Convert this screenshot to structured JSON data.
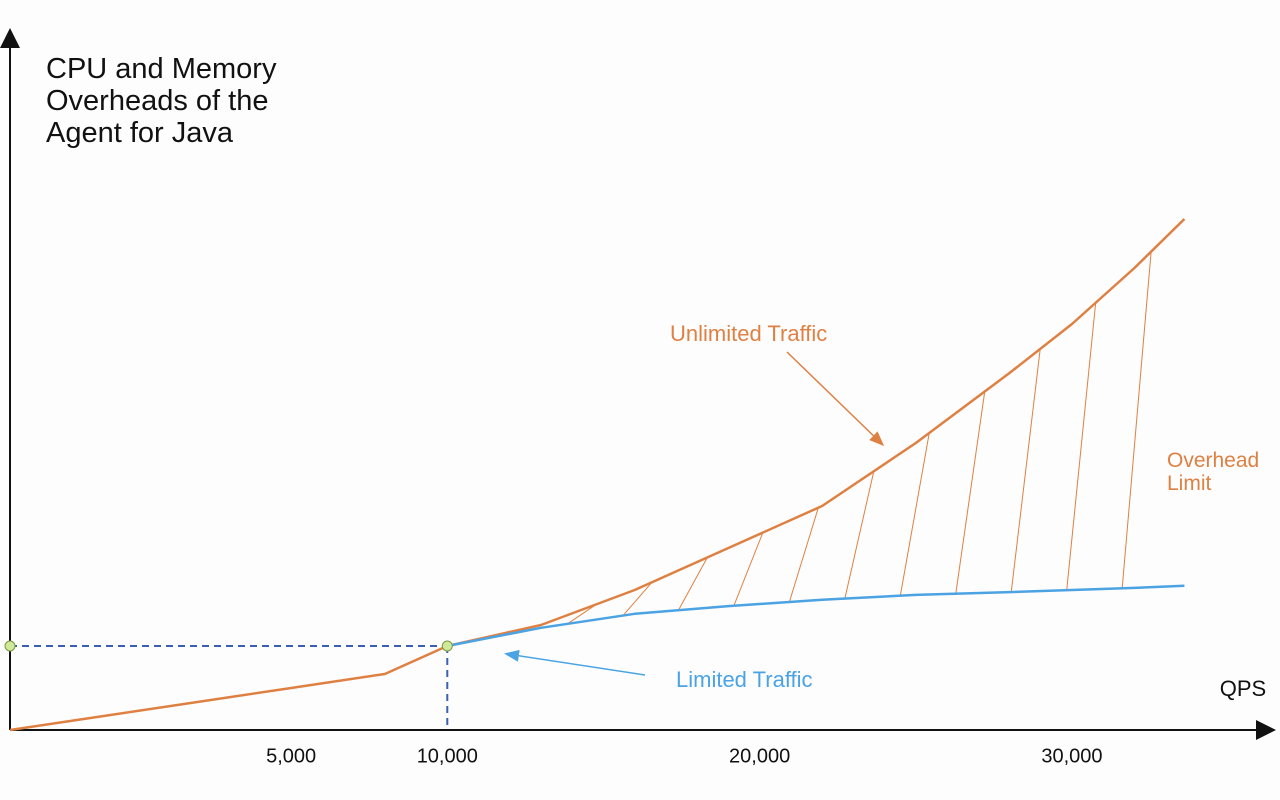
{
  "chart_data": {
    "type": "line",
    "title": "CPU and Memory Overheads of the Agent for Java",
    "x_label": "QPS",
    "x": [
      -4000,
      -1000,
      2000,
      5000,
      8000,
      10000,
      13000,
      16000,
      19000,
      22000,
      25000,
      28000,
      30000,
      32000,
      33600
    ],
    "series": [
      {
        "name": "Unlimited Traffic",
        "color": "#df8043",
        "values": [
          0,
          2,
          4,
          6,
          8,
          12,
          15,
          20,
          26,
          32,
          41,
          51,
          58,
          66,
          73
        ]
      },
      {
        "name": "Limited Traffic",
        "color": "#4ba3e3",
        "values": [
          null,
          null,
          null,
          null,
          null,
          12,
          14.6,
          16.6,
          17.7,
          18.6,
          19.3,
          19.7,
          20,
          20.3,
          20.6
        ]
      }
    ],
    "annotations": [
      {
        "text": "Overhead Limit",
        "color": "#df8043"
      }
    ],
    "xlim": [
      -4000,
      36500
    ],
    "ylim": [
      0,
      100
    ],
    "xticks": [
      {
        "value": 5000,
        "label": "5,000"
      },
      {
        "value": 10000,
        "label": "10,000"
      },
      {
        "value": 20000,
        "label": "20,000"
      },
      {
        "value": 30000,
        "label": "30,000"
      }
    ],
    "grid": false
  }
}
